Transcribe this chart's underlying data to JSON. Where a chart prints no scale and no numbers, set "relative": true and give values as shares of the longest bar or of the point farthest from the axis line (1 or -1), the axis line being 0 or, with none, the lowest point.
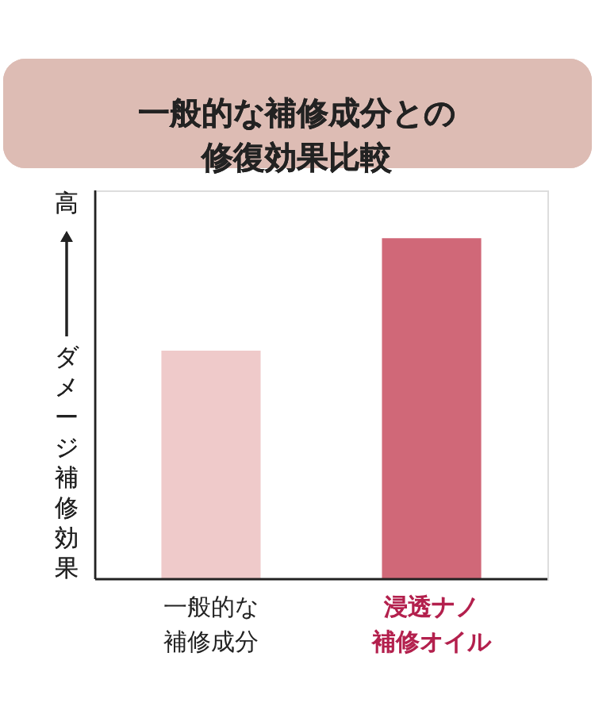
{
  "chart_data": {
    "type": "bar",
    "title": "一般的な補修成分との修復効果比較",
    "ylabel": "ダメージ補修効果",
    "annotations": [
      "高"
    ],
    "relative": true,
    "categories": [
      "一般的な補修成分",
      "浸透ナノ補修オイル"
    ],
    "values": [
      0.67,
      1
    ],
    "colors": [
      "#efcaca",
      "#d06878"
    ]
  }
}
